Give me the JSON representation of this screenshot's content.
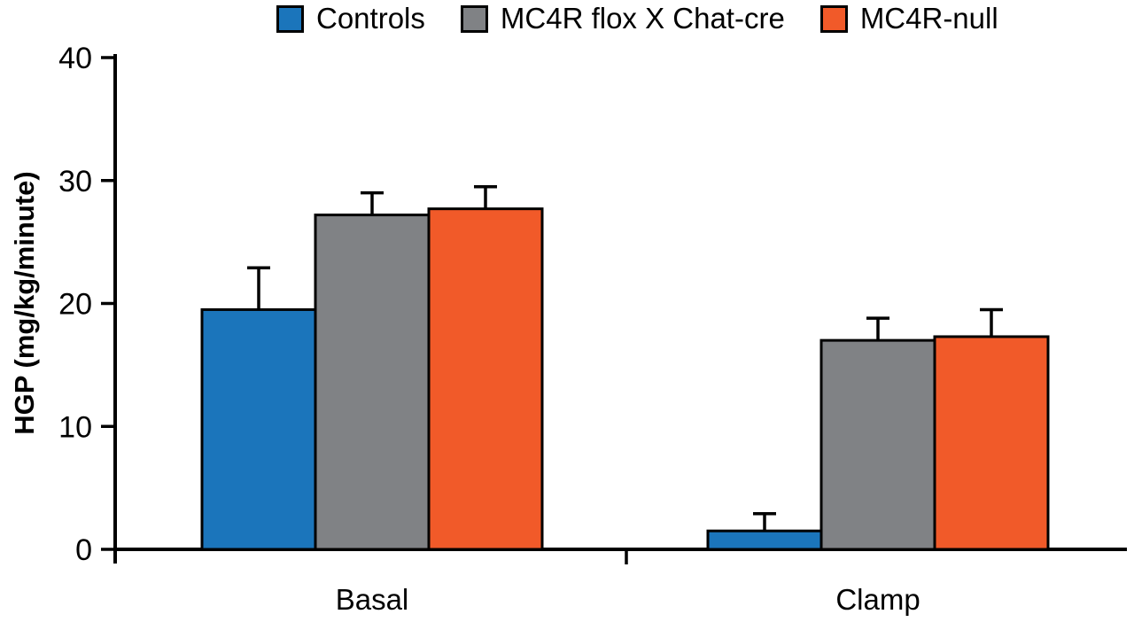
{
  "chart_data": {
    "type": "bar",
    "title": "",
    "xlabel": "",
    "ylabel": "HGP (mg/kg/minute)",
    "categories": [
      "Basal",
      "Clamp"
    ],
    "series": [
      {
        "name": "Controls",
        "color": "#1B75BB",
        "values": [
          19.5,
          1.5
        ],
        "errors": [
          3.4,
          1.4
        ]
      },
      {
        "name": "MC4R flox X Chat-cre",
        "color": "#808285",
        "values": [
          27.2,
          17.0
        ],
        "errors": [
          1.8,
          1.8
        ]
      },
      {
        "name": "MC4R-null",
        "color": "#F15A29",
        "values": [
          27.7,
          17.3
        ],
        "errors": [
          1.8,
          2.2
        ]
      }
    ],
    "ylim": [
      0,
      40
    ],
    "yticks": [
      0,
      10,
      20,
      30,
      40
    ],
    "legend_position": "top",
    "grid": false,
    "error_bars": "upper",
    "axis_color": "#000000"
  }
}
